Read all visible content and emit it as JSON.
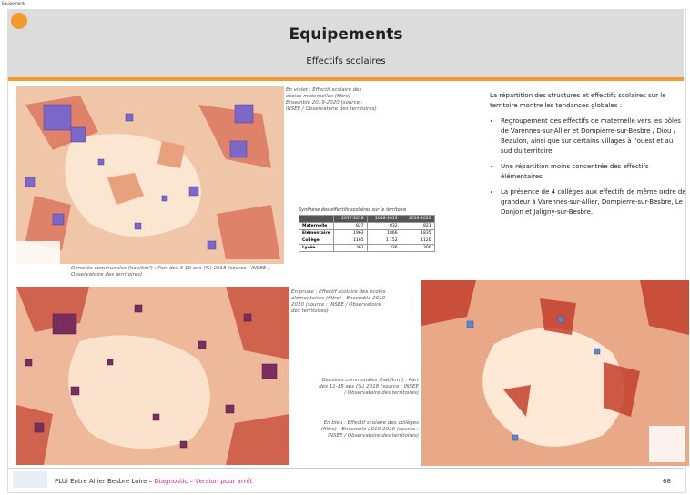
{
  "corner_label": "Equipements",
  "header": {
    "title": "Equipements",
    "subtitle": "Effectifs scolaires"
  },
  "captions": [
    "En violet : Effectif scolaire des écoles maternelles (filtre) - Ensemble 2019-2020 (source : INSEE / Observatoire des territoires)",
    "Densités communales (hab/km²) : Part des 3-10 ans (%) 2018 (source : INSEE / Observatoire des territoires)",
    "En prune : Effectif scolaire des écoles élémentaires (filtre) - Ensemble 2019-2020 (source : INSEE / Observatoire des territoires)",
    "Densités communales (hab/km²) : Part des 11-15 ans (%) 2018 (source : INSEE / Observatoire des territoires)",
    "En bleu : Effectif scolaire des collèges (filtre) - Ensemble 2019-2020 (source : INSEE / Observatoire des territoires)"
  ],
  "text": {
    "intro": "La répartition des structures et effectifs scolaires sur le territoire montre les tendances globales :",
    "bullets": [
      "Regroupement des effectifs de maternelle vers les pôles de Varennes-sur-Allier et Dompierre-sur-Besbre / Diou / Beaulon, ainsi que sur certains villages à l'ouest et au sud du territoire.",
      "Une répartition moins concentrée des effectifs élémentaires",
      "La présence de 4 collèges aux effectifs de même ordre de grandeur à Varennes-sur-Allier, Dompierre-sur-Besbre, Le Donjon et Jaligny-sur-Besbre."
    ]
  },
  "table": {
    "title": "Synthèse des effectifs scolaires sur le territoire",
    "header": [
      "",
      "2017-2018",
      "2018-2019",
      "2019-2020"
    ],
    "rows": [
      [
        "Maternelle",
        "827",
        "832",
        "821"
      ],
      [
        "Elémentaire",
        "1963",
        "1866",
        "1835"
      ],
      [
        "Collège",
        "1165",
        "1 152",
        "1120"
      ],
      [
        "Lycée",
        "361",
        "336",
        "300"
      ]
    ]
  },
  "footer": {
    "left": "PLUi Entre Allier Besbre Loire – ",
    "highlight": "Diagnostic – Version pour arrêt",
    "page": "68"
  }
}
